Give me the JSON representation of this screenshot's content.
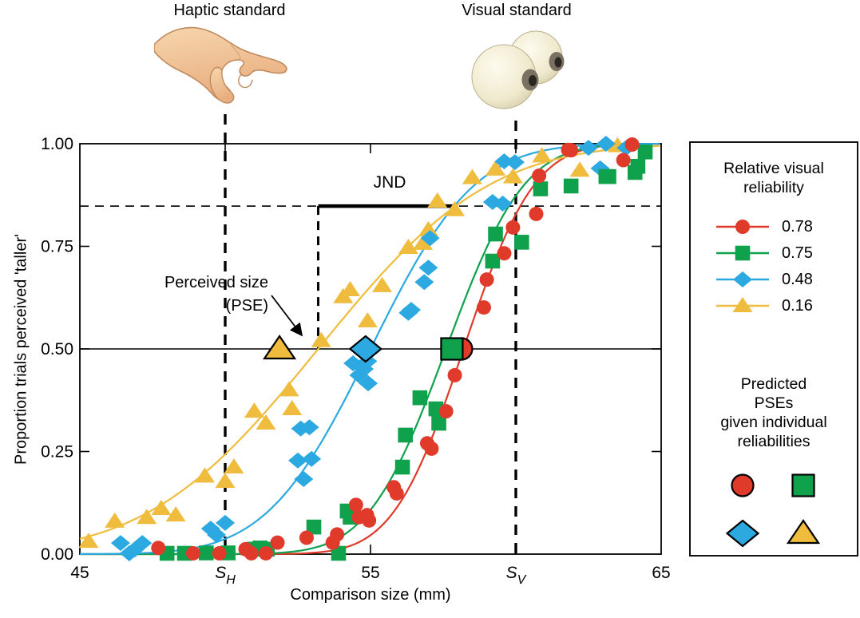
{
  "standards": {
    "haptic": {
      "label": "Haptic standard",
      "position_mm": 50,
      "tick_label": "S",
      "tick_sub": "H"
    },
    "visual": {
      "label": "Visual standard",
      "position_mm": 60,
      "tick_label": "S",
      "tick_sub": "V"
    }
  },
  "axes": {
    "x_title": "Comparison size (mm)",
    "y_title": "Proportion trials perceived 'taller'",
    "x_ticks": [
      {
        "mm": 45,
        "label": "45"
      },
      {
        "mm": 50,
        "label": "S",
        "sub": "H"
      },
      {
        "mm": 55,
        "label": "55"
      },
      {
        "mm": 60,
        "label": "S",
        "sub": "V"
      },
      {
        "mm": 65,
        "label": "65"
      }
    ],
    "y_ticks": [
      {
        "v": 0.0,
        "label": "0.00"
      },
      {
        "v": 0.25,
        "label": "0.25"
      },
      {
        "v": 0.5,
        "label": "0.50"
      },
      {
        "v": 0.75,
        "label": "0.75"
      },
      {
        "v": 1.0,
        "label": "1.00"
      }
    ]
  },
  "annotations": {
    "jnd": "JND",
    "pse_line1": "Perceived size",
    "pse_line2": "(PSE)"
  },
  "legend": {
    "title_line1": "Relative visual",
    "title_line2": "reliability",
    "predicted_line1": "Predicted",
    "predicted_line2": "PSEs",
    "predicted_line3": "given individual",
    "predicted_line4": "reliabilities"
  },
  "chart_data": {
    "type": "scatter",
    "description": "Psychometric functions: proportion of trials in which the comparison was perceived taller than the visual-haptic standard, for four relative visual reliabilities",
    "x_unit": "mm",
    "x_range": [
      45,
      65
    ],
    "y_range": [
      0,
      1
    ],
    "grid": false,
    "pse_level": 0.5,
    "threshold_level": 0.848,
    "standards": {
      "haptic_mm": 50,
      "visual_mm": 60
    },
    "jnd": {
      "from_mm": 53.2,
      "to_mm": 57.85
    },
    "series": [
      {
        "label": "0.78",
        "shape": "circle",
        "color": "#E03A2B",
        "fit": {
          "mu": 58.2,
          "sigma": 1.9
        },
        "predicted_pse_mm": 58.13,
        "points": [
          [
            47.7,
            0.015
          ],
          [
            48.9,
            0.002
          ],
          [
            49.8,
            0.002
          ],
          [
            50.7,
            0.012
          ],
          [
            50.9,
            0.002
          ],
          [
            51.4,
            0.002
          ],
          [
            51.8,
            0.028
          ],
          [
            52.8,
            0.04
          ],
          [
            53.7,
            0.028
          ],
          [
            53.85,
            0.048
          ],
          [
            54.5,
            0.12
          ],
          [
            54.6,
            0.09
          ],
          [
            54.88,
            0.095
          ],
          [
            54.95,
            0.082
          ],
          [
            55.8,
            0.163
          ],
          [
            55.9,
            0.148
          ],
          [
            56.95,
            0.27
          ],
          [
            57.1,
            0.257
          ],
          [
            57.6,
            0.348
          ],
          [
            57.9,
            0.436
          ],
          [
            58.9,
            0.601
          ],
          [
            59.0,
            0.669
          ],
          [
            59.6,
            0.733
          ],
          [
            59.9,
            0.796
          ],
          [
            60.7,
            0.829
          ],
          [
            60.8,
            0.922
          ],
          [
            61.8,
            0.985
          ],
          [
            61.9,
            0.984
          ],
          [
            63.7,
            0.96
          ],
          [
            64.0,
            0.998
          ]
        ]
      },
      {
        "label": "0.75",
        "shape": "square",
        "color": "#0FA14C",
        "fit": {
          "mu": 57.6,
          "sigma": 2.1
        },
        "predicted_pse_mm": 57.8,
        "points": [
          [
            48.0,
            0.002
          ],
          [
            48.6,
            0.002
          ],
          [
            49.35,
            0.003
          ],
          [
            50.1,
            0.003
          ],
          [
            51.0,
            0.012
          ],
          [
            51.2,
            0.015
          ],
          [
            51.45,
            0.012
          ],
          [
            53.05,
            0.066
          ],
          [
            53.9,
            0.002
          ],
          [
            54.2,
            0.105
          ],
          [
            54.3,
            0.09
          ],
          [
            56.1,
            0.212
          ],
          [
            56.2,
            0.29
          ],
          [
            56.7,
            0.381
          ],
          [
            57.25,
            0.354
          ],
          [
            57.35,
            0.319
          ],
          [
            59.2,
            0.714
          ],
          [
            59.3,
            0.78
          ],
          [
            60.2,
            0.76
          ],
          [
            60.85,
            0.89
          ],
          [
            61.9,
            0.897
          ],
          [
            63.1,
            0.92
          ],
          [
            63.2,
            0.92
          ],
          [
            64.1,
            0.93
          ],
          [
            64.2,
            0.945
          ],
          [
            64.45,
            0.98
          ]
        ]
      },
      {
        "label": "0.48",
        "shape": "diamond",
        "color": "#2BA9E0",
        "fit": {
          "mu": 55.0,
          "sigma": 2.8
        },
        "predicted_pse_mm": 54.83,
        "points": [
          [
            46.4,
            0.027
          ],
          [
            46.7,
            0.002
          ],
          [
            46.9,
            0.012
          ],
          [
            47.15,
            0.027
          ],
          [
            49.5,
            0.062
          ],
          [
            49.7,
            0.047
          ],
          [
            50.0,
            0.076
          ],
          [
            52.5,
            0.228
          ],
          [
            52.6,
            0.306
          ],
          [
            52.7,
            0.183
          ],
          [
            52.9,
            0.309
          ],
          [
            52.97,
            0.232
          ],
          [
            54.4,
            0.465
          ],
          [
            54.6,
            0.436
          ],
          [
            54.78,
            0.451
          ],
          [
            54.9,
            0.47
          ],
          [
            54.92,
            0.416
          ],
          [
            56.3,
            0.588
          ],
          [
            56.4,
            0.595
          ],
          [
            56.85,
            0.663
          ],
          [
            56.99,
            0.698
          ],
          [
            57.05,
            0.77
          ],
          [
            59.2,
            0.858
          ],
          [
            59.55,
            0.854
          ],
          [
            59.6,
            0.957
          ],
          [
            59.97,
            0.955
          ],
          [
            62.5,
            0.99
          ],
          [
            62.9,
            0.94
          ],
          [
            63.1,
            1.0
          ],
          [
            63.8,
            0.99
          ]
        ]
      },
      {
        "label": "0.16",
        "shape": "triangle",
        "color": "#EFBC3E",
        "fit": {
          "mu": 53.2,
          "sigma": 4.6
        },
        "predicted_pse_mm": 51.87,
        "points": [
          [
            45.3,
            0.031
          ],
          [
            46.2,
            0.08
          ],
          [
            47.3,
            0.089
          ],
          [
            47.8,
            0.111
          ],
          [
            48.3,
            0.095
          ],
          [
            49.3,
            0.19
          ],
          [
            50.0,
            0.177
          ],
          [
            50.3,
            0.212
          ],
          [
            51.0,
            0.348
          ],
          [
            51.4,
            0.319
          ],
          [
            52.2,
            0.4
          ],
          [
            52.3,
            0.354
          ],
          [
            53.3,
            0.52
          ],
          [
            54.06,
            0.627
          ],
          [
            54.3,
            0.644
          ],
          [
            54.9,
            0.568
          ],
          [
            55.4,
            0.654
          ],
          [
            56.3,
            0.747
          ],
          [
            56.8,
            0.757
          ],
          [
            56.99,
            0.79
          ],
          [
            57.3,
            0.86
          ],
          [
            57.9,
            0.839
          ],
          [
            58.5,
            0.917
          ],
          [
            59.3,
            0.938
          ],
          [
            59.9,
            0.919
          ],
          [
            60.9,
            0.97
          ],
          [
            62.2,
            0.935
          ],
          [
            63.5,
            0.995
          ]
        ]
      }
    ]
  }
}
